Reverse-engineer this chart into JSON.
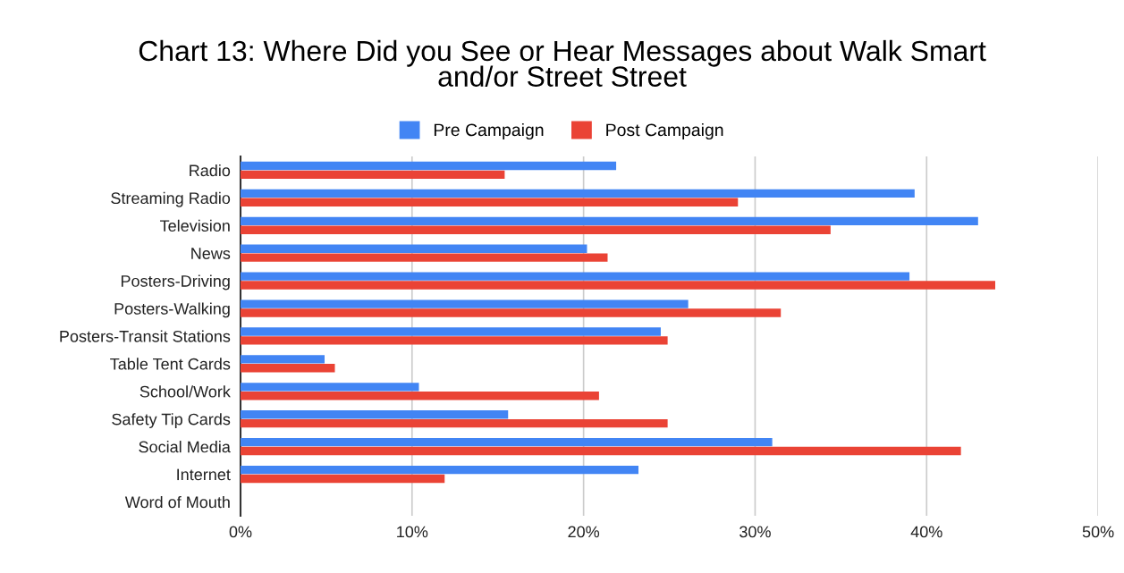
{
  "chart_data": {
    "type": "bar",
    "orientation": "horizontal",
    "title": "Chart 13: Where Did you See or Hear Messages about Walk Smart\nand/or Street Street",
    "categories": [
      "Radio",
      "Streaming Radio",
      "Television",
      "News",
      "Posters-Driving",
      "Posters-Walking",
      "Posters-Transit Stations",
      "Table Tent Cards",
      "School/Work",
      "Safety Tip Cards",
      "Social Media",
      "Internet",
      "Word of Mouth"
    ],
    "series": [
      {
        "name": "Pre Campaign",
        "color": "#4285f4",
        "values": [
          21.9,
          39.3,
          43.0,
          20.2,
          39.0,
          26.1,
          24.5,
          4.9,
          10.4,
          15.6,
          31.0,
          23.2,
          0
        ]
      },
      {
        "name": "Post Campaign",
        "color": "#ea4335",
        "values": [
          15.4,
          29.0,
          34.4,
          21.4,
          44.0,
          31.5,
          24.9,
          5.5,
          20.9,
          24.9,
          42.0,
          11.9,
          0
        ]
      }
    ],
    "xlim": [
      0,
      50
    ],
    "xticks": [
      {
        "value": 0,
        "label": "0%"
      },
      {
        "value": 10,
        "label": "10%"
      },
      {
        "value": 20,
        "label": "20%"
      },
      {
        "value": 30,
        "label": "30%"
      },
      {
        "value": 40,
        "label": "40%"
      },
      {
        "value": 50,
        "label": "50%"
      }
    ],
    "grid": "x",
    "legend": "top"
  }
}
